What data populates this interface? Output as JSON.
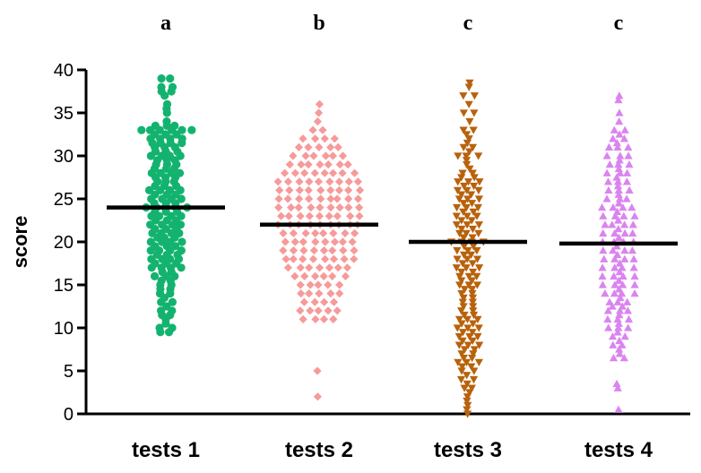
{
  "chart_data": {
    "type": "scatter",
    "ylabel": "score",
    "xlabel": "",
    "ylim": [
      0,
      40
    ],
    "yticks": [
      "0",
      "5",
      "10",
      "15",
      "20",
      "25",
      "30",
      "35",
      "40"
    ],
    "categories": [
      "tests 1",
      "tests 2",
      "tests 3",
      "tests 4"
    ],
    "significance_letters": [
      "a",
      "b",
      "c",
      "c"
    ],
    "grid": false,
    "legend": "none",
    "series": [
      {
        "category": "tests 1",
        "marker": "circle",
        "color": "#13b36f",
        "mean": 24,
        "values": [
          39,
          39,
          38,
          38,
          37.5,
          37.5,
          37,
          36,
          35.5,
          35,
          34,
          33.5,
          33.5,
          33.5,
          33,
          33,
          33,
          33,
          33,
          33,
          32.5,
          32.5,
          32.5,
          32,
          32,
          32,
          32,
          31.5,
          31.5,
          31.5,
          31.5,
          31,
          31,
          31,
          30.5,
          30.5,
          30.5,
          30,
          30,
          30,
          30,
          29.5,
          29.5,
          29.5,
          29,
          29,
          29,
          28.5,
          28.5,
          28.5,
          28,
          28,
          28,
          28,
          27.5,
          27.5,
          27.5,
          27,
          27,
          27,
          26.5,
          26.5,
          26.5,
          26,
          26,
          26,
          26,
          25.5,
          25.5,
          25.5,
          25,
          25,
          25,
          25,
          24.5,
          24.5,
          24.5,
          24,
          24,
          24,
          24,
          24,
          23.5,
          23.5,
          23.5,
          23,
          23,
          23,
          23,
          22.5,
          22.5,
          22.5,
          22,
          22,
          22,
          22,
          21.5,
          21.5,
          21.5,
          21,
          21,
          21,
          21,
          20.5,
          20.5,
          20.5,
          20,
          20,
          20,
          20,
          19.5,
          19.5,
          19.5,
          19,
          19,
          19,
          19,
          18.5,
          18.5,
          18.5,
          18,
          18,
          18,
          18,
          17.5,
          17.5,
          17.5,
          17,
          17,
          17,
          17,
          16.5,
          16.5,
          16,
          16,
          16,
          15.5,
          15.5,
          15,
          15,
          14.5,
          14.5,
          14,
          14,
          13.5,
          13,
          13,
          12.5,
          12,
          12,
          11.5,
          11.5,
          11,
          10.5,
          10,
          10,
          9.5,
          9.5
        ]
      },
      {
        "category": "tests 2",
        "marker": "diamond",
        "color": "#f79a9a",
        "mean": 22,
        "values": [
          36,
          35,
          34,
          33,
          33,
          32,
          32,
          32,
          32,
          31,
          31,
          31,
          31,
          31,
          30,
          30,
          30,
          30,
          30,
          30,
          29,
          29,
          29,
          29,
          29,
          29,
          29,
          28,
          28,
          28,
          28,
          28,
          28,
          28,
          28,
          27,
          27,
          27,
          27,
          27,
          27,
          27,
          27,
          27,
          26,
          26,
          26,
          26,
          26,
          26,
          26,
          26,
          26,
          25,
          25,
          25,
          25,
          25,
          25,
          25,
          25,
          25,
          24,
          24,
          24,
          24,
          24,
          24,
          24,
          24,
          24,
          23,
          23,
          23,
          23,
          23,
          23,
          23,
          23,
          23,
          22,
          22,
          22,
          22,
          22,
          22,
          22,
          22,
          22,
          21,
          21,
          21,
          21,
          21,
          21,
          21,
          21,
          20,
          20,
          20,
          20,
          20,
          20,
          20,
          20,
          19,
          19,
          19,
          19,
          19,
          19,
          19,
          19,
          18,
          18,
          18,
          18,
          18,
          18,
          18,
          18,
          17,
          17,
          17,
          17,
          17,
          17,
          17,
          16,
          16,
          16,
          16,
          16,
          16,
          15,
          15,
          15,
          15,
          15,
          14,
          14,
          14,
          14,
          14,
          13,
          13,
          13,
          13,
          12,
          12,
          12,
          12,
          12,
          11,
          11,
          11,
          11,
          5,
          2
        ]
      },
      {
        "category": "tests 3",
        "marker": "triangle-down",
        "color": "#b8620c",
        "mean": 20,
        "values": [
          38.5,
          38,
          37,
          37,
          36,
          35,
          35,
          34,
          33,
          33,
          32.5,
          32,
          31.5,
          31,
          31,
          30.5,
          30,
          30,
          30,
          29.5,
          29,
          28.5,
          28,
          28,
          27.5,
          27.5,
          27,
          27,
          27,
          26.5,
          26.5,
          26,
          26,
          26,
          25.5,
          25.5,
          25,
          25,
          25,
          24.5,
          24.5,
          24,
          24,
          24,
          23.5,
          23.5,
          23,
          23,
          23,
          22.5,
          22.5,
          22,
          22,
          22,
          21.5,
          21.5,
          21,
          21,
          21,
          20.5,
          20.5,
          20,
          20,
          20,
          20,
          19.5,
          19.5,
          19,
          19,
          19,
          18.5,
          18.5,
          18,
          18,
          18,
          17.5,
          17.5,
          17,
          17,
          17,
          16.5,
          16.5,
          16,
          16,
          16,
          15.5,
          15.5,
          15,
          15,
          15,
          14.5,
          14.5,
          14,
          14,
          13.5,
          13.5,
          13,
          13,
          12.5,
          12.5,
          12,
          12,
          11.5,
          11.5,
          11,
          11,
          11,
          10.5,
          10.5,
          10,
          10,
          10,
          9.5,
          9.5,
          9,
          9,
          9,
          8.5,
          8.5,
          8,
          8,
          8,
          7.5,
          7.5,
          7,
          7,
          6.5,
          6.5,
          6,
          6,
          6,
          5.5,
          5.5,
          5,
          5,
          4.5,
          4,
          4,
          3.5,
          3,
          3,
          2.5,
          2,
          1.5,
          1,
          0.5,
          0
        ]
      },
      {
        "category": "tests 4",
        "marker": "triangle-up",
        "color": "#da84f0",
        "mean": 19.8,
        "values": [
          37,
          36.5,
          35,
          34,
          33,
          33,
          32.5,
          32,
          32,
          31.5,
          31,
          31,
          31,
          30,
          30,
          30,
          29.5,
          29,
          29,
          29,
          28.5,
          28,
          28,
          28,
          27.5,
          27,
          27,
          27,
          26.5,
          26,
          26,
          26,
          25.5,
          25,
          25,
          25,
          24.5,
          24,
          24,
          24,
          24,
          23.5,
          23,
          23,
          23,
          23,
          22.5,
          22,
          22,
          22,
          22,
          21.5,
          21,
          21,
          21,
          21,
          20.5,
          20,
          20,
          20,
          20,
          19.5,
          19,
          19,
          19,
          19,
          18.5,
          18,
          18,
          18,
          18,
          17.5,
          17,
          17,
          17,
          17,
          16.5,
          16,
          16,
          16,
          16,
          15.5,
          15,
          15,
          15,
          15,
          14.5,
          14,
          14,
          14,
          14,
          13.5,
          13,
          13,
          13,
          12.5,
          12.5,
          12,
          12,
          12,
          11.5,
          11,
          11,
          11,
          10.5,
          10,
          10,
          10,
          9.5,
          9,
          9,
          8.5,
          8,
          8,
          7.5,
          7,
          6.5,
          6.5,
          3.5,
          3,
          0.5
        ]
      }
    ]
  }
}
